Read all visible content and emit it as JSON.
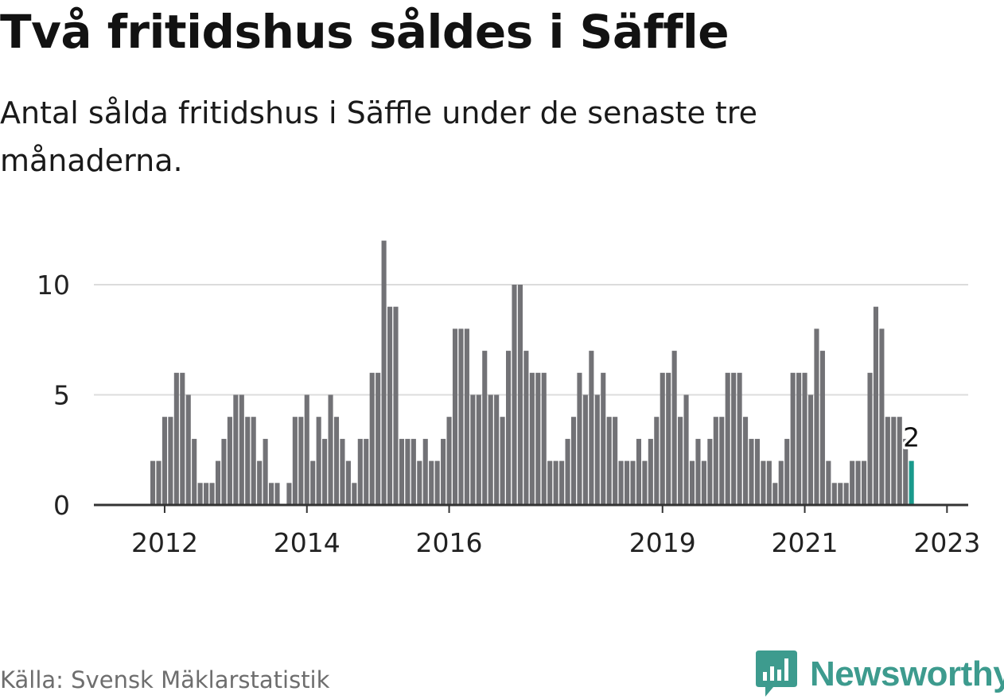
{
  "header": {
    "title": "Två fritidshus såldes i Säffle",
    "subtitle": "Antal sålda fritidshus i Säffle under de senaste tre månaderna."
  },
  "footer": {
    "source": "Källa: Svensk Mäklarstatistik",
    "brand": "Newsworthy"
  },
  "colors": {
    "bar": "#727276",
    "highlight": "#1a9a8c",
    "grid": "#dcdcdc",
    "axis": "#333333",
    "brand": "#3d9b8e"
  },
  "icons": {
    "logo": "newsworthy-logo-icon"
  },
  "chart_data": {
    "type": "bar",
    "title": "Två fritidshus såldes i Säffle",
    "subtitle": "Antal sålda fritidshus i Säffle under de senaste tre månaderna.",
    "xlabel": "",
    "ylabel": "",
    "ylim": [
      0,
      12
    ],
    "yticks": [
      0,
      5,
      10
    ],
    "grid": true,
    "start_month": "2011-01",
    "xtick_labels": [
      "2012",
      "2014",
      "2016",
      "2019",
      "2021",
      "2023"
    ],
    "xtick_month_index": [
      12,
      36,
      60,
      96,
      120,
      144
    ],
    "values": [
      0,
      0,
      0,
      0,
      0,
      0,
      0,
      0,
      0,
      0,
      2,
      2,
      4,
      4,
      6,
      6,
      5,
      3,
      1,
      1,
      1,
      2,
      3,
      4,
      5,
      5,
      4,
      4,
      2,
      3,
      1,
      1,
      0,
      1,
      4,
      4,
      5,
      2,
      4,
      3,
      5,
      4,
      3,
      2,
      1,
      3,
      3,
      6,
      6,
      12,
      9,
      9,
      3,
      3,
      3,
      2,
      3,
      2,
      2,
      3,
      4,
      8,
      8,
      8,
      5,
      5,
      7,
      5,
      5,
      4,
      7,
      10,
      10,
      7,
      6,
      6,
      6,
      2,
      2,
      2,
      3,
      4,
      6,
      5,
      7,
      5,
      6,
      4,
      4,
      2,
      2,
      2,
      3,
      2,
      3,
      4,
      6,
      6,
      7,
      4,
      5,
      2,
      3,
      2,
      3,
      4,
      4,
      6,
      6,
      6,
      4,
      3,
      3,
      2,
      2,
      1,
      2,
      3,
      6,
      6,
      6,
      5,
      8,
      7,
      2,
      1,
      1,
      1,
      2,
      2,
      2,
      6,
      9,
      8,
      4,
      4,
      4,
      3,
      2
    ],
    "highlight_label": "2"
  }
}
